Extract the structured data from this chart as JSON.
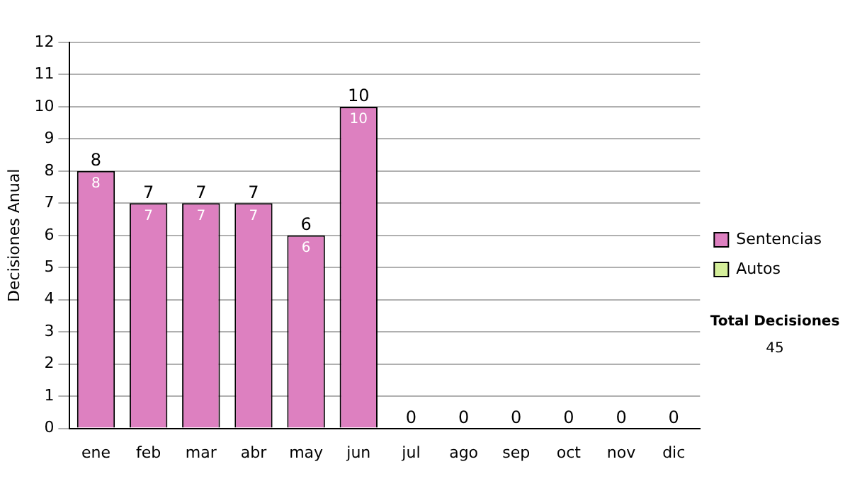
{
  "chart_data": {
    "type": "bar",
    "ylabel": "Decisiones Anual",
    "categories": [
      "ene",
      "feb",
      "mar",
      "abr",
      "may",
      "jun",
      "jul",
      "ago",
      "sep",
      "oct",
      "nov",
      "dic"
    ],
    "series": [
      {
        "name": "Sentencias",
        "color": "#dd80c0",
        "values": [
          8,
          7,
          7,
          7,
          6,
          10,
          0,
          0,
          0,
          0,
          0,
          0
        ],
        "value_labels": [
          "8",
          "7",
          "7",
          "7",
          "6",
          "10",
          null,
          null,
          null,
          null,
          null,
          null
        ]
      },
      {
        "name": "Autos",
        "color": "#d4ee9a",
        "values": [
          0,
          0,
          0,
          0,
          0,
          0,
          0,
          0,
          0,
          0,
          0,
          0
        ]
      }
    ],
    "stacked": true,
    "totals": [
      "8",
      "7",
      "7",
      "7",
      "6",
      "10",
      "0",
      "0",
      "0",
      "0",
      "0",
      "0"
    ],
    "ylim": [
      0,
      12
    ],
    "yticks": [
      0,
      1,
      2,
      3,
      4,
      5,
      6,
      7,
      8,
      9,
      10,
      11,
      12
    ],
    "grid": "y",
    "legend": "right",
    "annotations": [
      "Total Decisiones",
      "45"
    ]
  }
}
